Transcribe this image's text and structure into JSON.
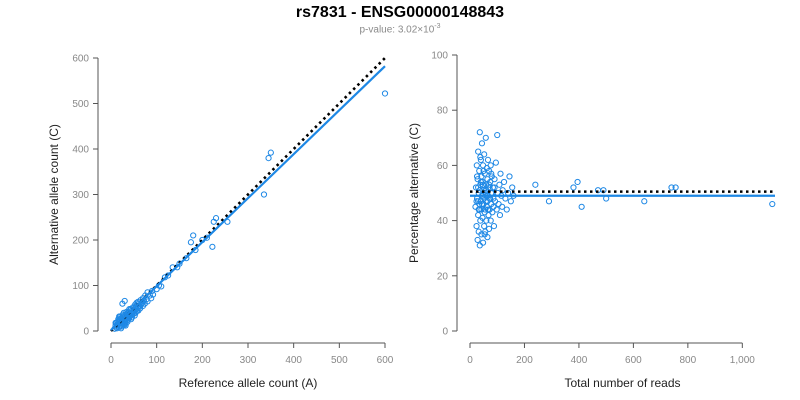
{
  "title": "rs7831 - ENSG00000148843",
  "subtitle": {
    "prefix": "p-value: 3.02×10",
    "exponent": "-3"
  },
  "colors": {
    "points": "#1e88e5",
    "fit_line": "#1e88e5",
    "reference_line": "#000000",
    "axis": "#555555",
    "tick_text": "#888888"
  },
  "chart_data": [
    {
      "type": "scatter",
      "xlabel": "Reference allele count (A)",
      "ylabel": "Alternative allele count (C)",
      "xlim": [
        0,
        600
      ],
      "ylim": [
        0,
        600
      ],
      "x_ticks": [
        0,
        100,
        200,
        300,
        400,
        500,
        600
      ],
      "y_ticks": [
        0,
        100,
        200,
        300,
        400,
        500,
        600
      ],
      "x_tick_labels": [
        "0",
        "100",
        "200",
        "300",
        "400",
        "500",
        "600"
      ],
      "y_tick_labels": [
        "0",
        "100",
        "200",
        "300",
        "400",
        "500",
        "600"
      ],
      "grid": false,
      "points": [
        [
          8,
          5
        ],
        [
          10,
          12
        ],
        [
          12,
          8
        ],
        [
          12,
          18
        ],
        [
          14,
          10
        ],
        [
          15,
          20
        ],
        [
          16,
          14
        ],
        [
          18,
          22
        ],
        [
          18,
          8
        ],
        [
          20,
          16
        ],
        [
          20,
          25
        ],
        [
          22,
          12
        ],
        [
          22,
          28
        ],
        [
          24,
          18
        ],
        [
          25,
          22
        ],
        [
          26,
          30
        ],
        [
          28,
          15
        ],
        [
          28,
          24
        ],
        [
          30,
          20
        ],
        [
          30,
          35
        ],
        [
          32,
          26
        ],
        [
          32,
          18
        ],
        [
          34,
          30
        ],
        [
          35,
          38
        ],
        [
          36,
          24
        ],
        [
          38,
          32
        ],
        [
          38,
          42
        ],
        [
          40,
          28
        ],
        [
          40,
          36
        ],
        [
          42,
          45
        ],
        [
          44,
          34
        ],
        [
          45,
          40
        ],
        [
          46,
          30
        ],
        [
          48,
          44
        ],
        [
          50,
          38
        ],
        [
          50,
          50
        ],
        [
          52,
          46
        ],
        [
          54,
          40
        ],
        [
          55,
          55
        ],
        [
          56,
          48
        ],
        [
          58,
          52
        ],
        [
          60,
          45
        ],
        [
          60,
          60
        ],
        [
          62,
          56
        ],
        [
          64,
          50
        ],
        [
          65,
          68
        ],
        [
          66,
          58
        ],
        [
          68,
          62
        ],
        [
          70,
          55
        ],
        [
          70,
          72
        ],
        [
          72,
          66
        ],
        [
          74,
          60
        ],
        [
          75,
          78
        ],
        [
          78,
          70
        ],
        [
          80,
          65
        ],
        [
          80,
          85
        ],
        [
          85,
          78
        ],
        [
          88,
          72
        ],
        [
          90,
          88
        ],
        [
          92,
          80
        ],
        [
          15,
          15
        ],
        [
          17,
          25
        ],
        [
          19,
          12
        ],
        [
          21,
          20
        ],
        [
          23,
          26
        ],
        [
          27,
          18
        ],
        [
          29,
          30
        ],
        [
          31,
          22
        ],
        [
          33,
          36
        ],
        [
          37,
          28
        ],
        [
          39,
          40
        ],
        [
          41,
          32
        ],
        [
          43,
          48
        ],
        [
          47,
          36
        ],
        [
          49,
          42
        ],
        [
          53,
          58
        ],
        [
          57,
          44
        ],
        [
          59,
          64
        ],
        [
          63,
          54
        ],
        [
          67,
          60
        ],
        [
          10,
          18
        ],
        [
          13,
          6
        ],
        [
          16,
          26
        ],
        [
          19,
          30
        ],
        [
          24,
          10
        ],
        [
          26,
          36
        ],
        [
          30,
          14
        ],
        [
          34,
          42
        ],
        [
          36,
          20
        ],
        [
          40,
          48
        ],
        [
          44,
          26
        ],
        [
          48,
          52
        ],
        [
          52,
          34
        ],
        [
          56,
          62
        ],
        [
          18,
          32
        ],
        [
          22,
          6
        ],
        [
          28,
          40
        ],
        [
          32,
          12
        ],
        [
          25,
          60
        ],
        [
          30,
          66
        ],
        [
          100,
          92
        ],
        [
          105,
          100
        ],
        [
          110,
          98
        ],
        [
          118,
          118
        ],
        [
          125,
          122
        ],
        [
          135,
          140
        ],
        [
          145,
          140
        ],
        [
          150,
          148
        ],
        [
          165,
          160
        ],
        [
          175,
          195
        ],
        [
          180,
          210
        ],
        [
          185,
          178
        ],
        [
          200,
          200
        ],
        [
          210,
          205
        ],
        [
          222,
          185
        ],
        [
          225,
          240
        ],
        [
          230,
          248
        ],
        [
          255,
          240
        ],
        [
          335,
          300
        ],
        [
          345,
          380
        ],
        [
          350,
          392
        ],
        [
          600,
          522
        ]
      ],
      "fit_line": [
        [
          0,
          2
        ],
        [
          600,
          582
        ]
      ],
      "reference_line": [
        [
          0,
          0
        ],
        [
          600,
          600
        ]
      ]
    },
    {
      "type": "scatter",
      "xlabel": "Total number of reads",
      "ylabel": "Percentage alternative (C)",
      "xlim": [
        0,
        1120
      ],
      "ylim": [
        0,
        100
      ],
      "x_ticks": [
        0,
        200,
        400,
        600,
        800,
        1000
      ],
      "y_ticks": [
        0,
        20,
        40,
        60,
        80,
        100
      ],
      "x_tick_labels": [
        "0",
        "200",
        "400",
        "600",
        "800",
        "1,000"
      ],
      "y_tick_labels": [
        "0",
        "20",
        "40",
        "60",
        "80",
        "100"
      ],
      "grid": false,
      "points": [
        [
          20,
          45
        ],
        [
          22,
          52
        ],
        [
          24,
          38
        ],
        [
          25,
          60
        ],
        [
          26,
          48
        ],
        [
          28,
          33
        ],
        [
          28,
          55
        ],
        [
          30,
          42
        ],
        [
          30,
          65
        ],
        [
          32,
          50
        ],
        [
          32,
          36
        ],
        [
          34,
          58
        ],
        [
          35,
          44
        ],
        [
          36,
          72
        ],
        [
          36,
          31
        ],
        [
          38,
          53
        ],
        [
          38,
          40
        ],
        [
          40,
          62
        ],
        [
          40,
          47
        ],
        [
          42,
          35
        ],
        [
          42,
          56
        ],
        [
          44,
          49
        ],
        [
          44,
          68
        ],
        [
          46,
          41
        ],
        [
          46,
          54
        ],
        [
          48,
          32
        ],
        [
          48,
          60
        ],
        [
          50,
          46
        ],
        [
          50,
          51
        ],
        [
          52,
          38
        ],
        [
          52,
          64
        ],
        [
          54,
          57
        ],
        [
          54,
          43
        ],
        [
          56,
          50
        ],
        [
          56,
          36
        ],
        [
          58,
          70
        ],
        [
          58,
          47
        ],
        [
          60,
          53
        ],
        [
          60,
          40
        ],
        [
          62,
          59
        ],
        [
          62,
          45
        ],
        [
          64,
          34
        ],
        [
          64,
          55
        ],
        [
          66,
          49
        ],
        [
          66,
          62
        ],
        [
          68,
          42
        ],
        [
          68,
          52
        ],
        [
          70,
          37
        ],
        [
          70,
          58
        ],
        [
          72,
          48
        ],
        [
          72,
          44
        ],
        [
          74,
          54
        ],
        [
          76,
          40
        ],
        [
          76,
          60
        ],
        [
          78,
          50
        ],
        [
          78,
          46
        ],
        [
          80,
          56
        ],
        [
          82,
          43
        ],
        [
          84,
          52
        ],
        [
          86,
          48
        ],
        [
          88,
          38
        ],
        [
          90,
          55
        ],
        [
          92,
          47
        ],
        [
          95,
          61
        ],
        [
          98,
          44
        ],
        [
          100,
          71
        ],
        [
          102,
          50
        ],
        [
          105,
          46
        ],
        [
          108,
          53
        ],
        [
          110,
          42
        ],
        [
          112,
          57
        ],
        [
          115,
          49
        ],
        [
          118,
          45
        ],
        [
          120,
          51
        ],
        [
          125,
          54
        ],
        [
          130,
          48
        ],
        [
          135,
          44
        ],
        [
          140,
          50
        ],
        [
          145,
          56
        ],
        [
          150,
          47
        ],
        [
          155,
          52
        ],
        [
          160,
          49
        ],
        [
          24,
          47
        ],
        [
          26,
          56
        ],
        [
          30,
          52
        ],
        [
          34,
          46
        ],
        [
          38,
          63
        ],
        [
          42,
          44
        ],
        [
          46,
          49
        ],
        [
          50,
          58
        ],
        [
          54,
          35
        ],
        [
          58,
          51
        ],
        [
          62,
          49
        ],
        [
          66,
          44
        ],
        [
          70,
          53
        ],
        [
          74,
          48
        ],
        [
          78,
          57
        ],
        [
          82,
          50
        ],
        [
          86,
          45
        ],
        [
          90,
          52
        ],
        [
          30,
          47
        ],
        [
          32,
          44
        ],
        [
          36,
          51
        ],
        [
          40,
          54
        ],
        [
          44,
          46
        ],
        [
          48,
          53
        ],
        [
          52,
          48
        ],
        [
          56,
          44
        ],
        [
          60,
          51
        ],
        [
          64,
          47
        ],
        [
          240,
          53
        ],
        [
          290,
          47
        ],
        [
          380,
          52
        ],
        [
          395,
          54
        ],
        [
          410,
          45
        ],
        [
          470,
          51
        ],
        [
          490,
          51
        ],
        [
          500,
          48
        ],
        [
          640,
          47
        ],
        [
          740,
          52
        ],
        [
          755,
          52
        ],
        [
          1110,
          46
        ]
      ],
      "fit_line": [
        [
          0,
          49
        ],
        [
          1120,
          49
        ]
      ],
      "reference_line": [
        [
          0,
          50.5
        ],
        [
          1120,
          50.5
        ]
      ]
    }
  ]
}
